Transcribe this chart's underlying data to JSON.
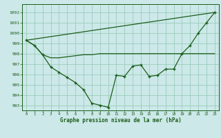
{
  "title": "Graphe pression niveau de la mer (hPa)",
  "bg_color": "#cce8e8",
  "grid_color": "#99ccbb",
  "line_color": "#1a5c1a",
  "xlim": [
    -0.5,
    23.5
  ],
  "ylim": [
    992.5,
    1002.8
  ],
  "yticks": [
    993,
    994,
    995,
    996,
    997,
    998,
    999,
    1000,
    1001,
    1002
  ],
  "xticks": [
    0,
    1,
    2,
    3,
    4,
    5,
    6,
    7,
    8,
    9,
    10,
    11,
    12,
    13,
    14,
    15,
    16,
    17,
    18,
    19,
    20,
    21,
    22,
    23
  ],
  "hourly_data": [
    999.3,
    998.8,
    997.9,
    996.7,
    996.2,
    995.7,
    995.2,
    994.5,
    993.2,
    993.0,
    992.8,
    995.9,
    995.8,
    996.8,
    996.9,
    995.8,
    995.9,
    996.5,
    996.5,
    998.0,
    998.8,
    1000.0,
    1001.0,
    1002.0
  ],
  "diag_line": [
    [
      0,
      999.3
    ],
    [
      23,
      1002.0
    ]
  ],
  "flat_line_x": [
    0,
    1,
    2,
    3,
    4,
    5,
    6,
    7,
    8,
    9,
    10,
    11,
    12,
    13,
    14,
    15,
    16,
    17,
    18,
    19,
    20,
    21,
    22,
    23
  ],
  "flat_line_y": [
    999.3,
    998.8,
    997.9,
    997.6,
    997.6,
    997.7,
    997.8,
    997.9,
    997.9,
    998.0,
    998.0,
    998.0,
    998.0,
    998.0,
    998.0,
    998.0,
    998.0,
    998.0,
    998.0,
    998.0,
    998.0,
    998.0,
    998.0,
    998.0
  ]
}
